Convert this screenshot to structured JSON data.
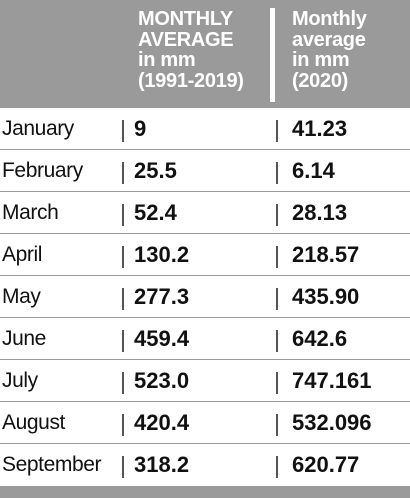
{
  "header": {
    "col1": [
      "MONTHLY",
      "AVERAGE",
      "in mm",
      "(1991-2019)"
    ],
    "col2": [
      "Monthly",
      "average",
      "in mm",
      "(2020)"
    ]
  },
  "rows": [
    {
      "month": "January",
      "avg_1991_2019": "9",
      "avg_2020": "41.23"
    },
    {
      "month": "February",
      "avg_1991_2019": "25.5",
      "avg_2020": "6.14"
    },
    {
      "month": "March",
      "avg_1991_2019": "52.4",
      "avg_2020": "28.13"
    },
    {
      "month": "April",
      "avg_1991_2019": "130.2",
      "avg_2020": "218.57"
    },
    {
      "month": "May",
      "avg_1991_2019": "277.3",
      "avg_2020": "435.90"
    },
    {
      "month": "June",
      "avg_1991_2019": "459.4",
      "avg_2020": "642.6"
    },
    {
      "month": "July",
      "avg_1991_2019": "523.0",
      "avg_2020": "747.161"
    },
    {
      "month": "August",
      "avg_1991_2019": "420.4",
      "avg_2020": "532.096"
    },
    {
      "month": "September",
      "avg_1991_2019": "318.2",
      "avg_2020": "620.77"
    }
  ],
  "colors": {
    "header_bg": "#9a9a9a",
    "header_text": "#ffffff",
    "body_text": "#111111"
  }
}
